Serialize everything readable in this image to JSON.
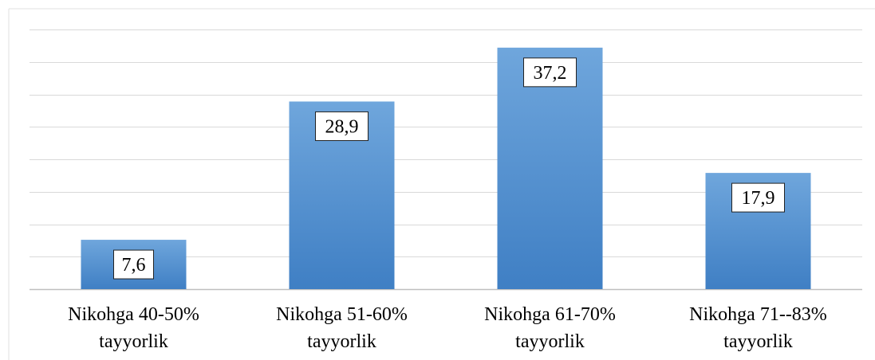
{
  "chart_data": {
    "type": "bar",
    "categories": [
      [
        "Nikohga 40-50%",
        "tayyorlik"
      ],
      [
        "Nikohga 51-60%",
        "tayyorlik"
      ],
      [
        "Nikohga 61-70%",
        "tayyorlik"
      ],
      [
        "Nikohga 71--83%",
        "tayyorlik"
      ]
    ],
    "values": [
      7.6,
      28.9,
      37.2,
      17.9
    ],
    "value_labels": [
      "7,6",
      "28,9",
      "37,2",
      "17,9"
    ],
    "ylim": [
      0,
      40
    ],
    "y_grid_step": 5,
    "grid": true,
    "y_axis_visible": false,
    "legend": "none",
    "colors": {
      "bar_top": "#6fa6dc",
      "bar_bottom": "#3f7fc4",
      "grid": "#d9d9d9",
      "axis": "#bfbfbf"
    }
  }
}
